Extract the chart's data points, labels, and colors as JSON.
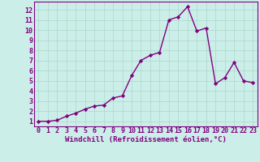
{
  "x": [
    0,
    1,
    2,
    3,
    4,
    5,
    6,
    7,
    8,
    9,
    10,
    11,
    12,
    13,
    14,
    15,
    16,
    17,
    18,
    19,
    20,
    21,
    22,
    23
  ],
  "y": [
    1,
    1,
    1.1,
    1.5,
    1.8,
    2.2,
    2.5,
    2.6,
    3.3,
    3.5,
    5.5,
    7.0,
    7.5,
    7.8,
    11.0,
    11.3,
    12.3,
    9.9,
    10.2,
    4.7,
    5.3,
    6.8,
    5.0,
    4.8
  ],
  "line_color": "#800080",
  "marker": "D",
  "marker_size": 2.2,
  "linewidth": 1.0,
  "bg_color": "#cceee8",
  "grid_color": "#aad8cc",
  "xlabel": "Windchill (Refroidissement éolien,°C)",
  "xlabel_color": "#800080",
  "xlabel_fontsize": 6.5,
  "tick_color": "#800080",
  "tick_fontsize": 6.0,
  "xlim": [
    -0.5,
    23.5
  ],
  "ylim": [
    0.5,
    12.8
  ],
  "yticks": [
    1,
    2,
    3,
    4,
    5,
    6,
    7,
    8,
    9,
    10,
    11,
    12
  ],
  "xticks": [
    0,
    1,
    2,
    3,
    4,
    5,
    6,
    7,
    8,
    9,
    10,
    11,
    12,
    13,
    14,
    15,
    16,
    17,
    18,
    19,
    20,
    21,
    22,
    23
  ]
}
